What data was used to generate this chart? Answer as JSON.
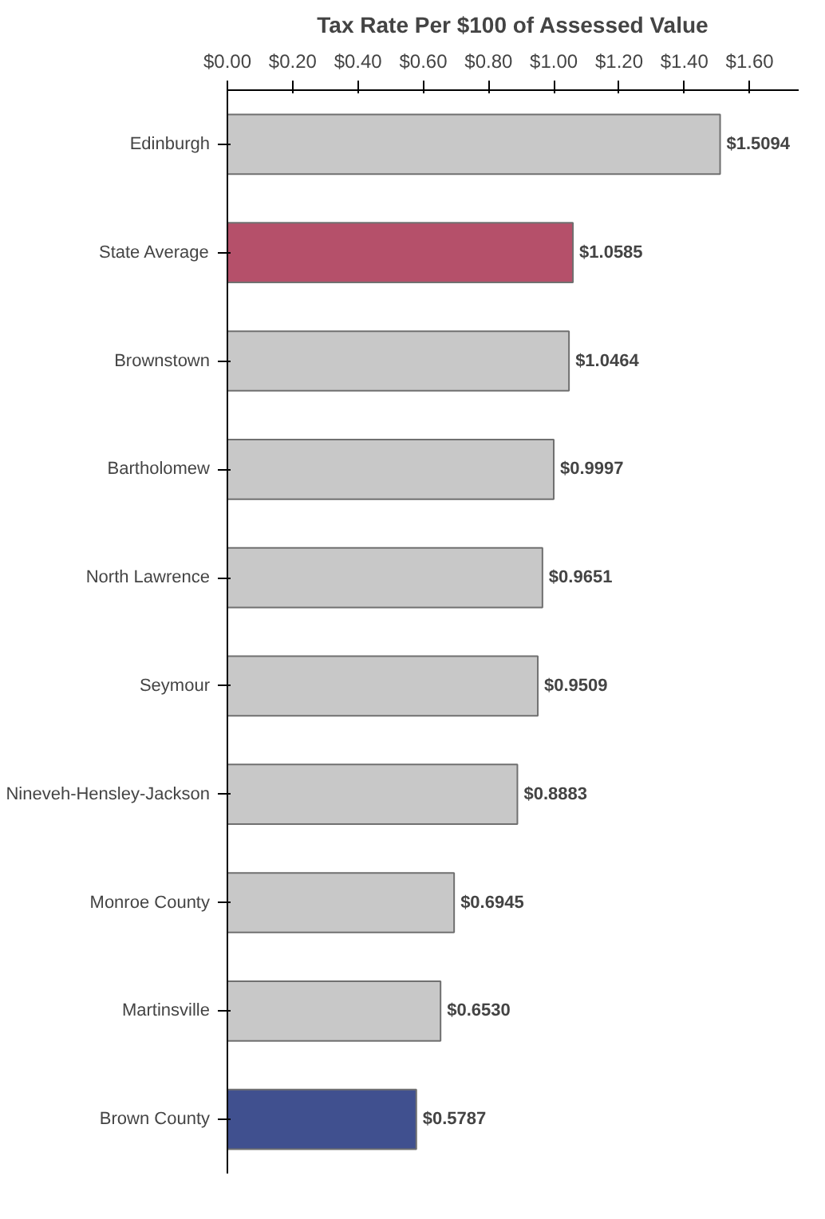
{
  "chart_data": {
    "type": "bar",
    "orientation": "horizontal",
    "title": "Tax Rate Per $100 of Assessed Value",
    "categories": [
      "Edinburgh",
      "State Average",
      "Brownstown",
      "Bartholomew",
      "North Lawrence",
      "Seymour",
      "Nineveh-Hensley-Jackson",
      "Monroe County",
      "Martinsville",
      "Brown County"
    ],
    "values": [
      1.5094,
      1.0585,
      1.0464,
      0.9997,
      0.9651,
      0.9509,
      0.8883,
      0.6945,
      0.653,
      0.5787
    ],
    "value_labels": [
      "$1.5094",
      "$1.0585",
      "$1.0464",
      "$0.9997",
      "$0.9651",
      "$0.9509",
      "$0.8883",
      "$0.6945",
      "$0.6530",
      "$0.5787"
    ],
    "colors": [
      "#c8c8c8",
      "#b5506a",
      "#c8c8c8",
      "#c8c8c8",
      "#c8c8c8",
      "#c8c8c8",
      "#c8c8c8",
      "#c8c8c8",
      "#c8c8c8",
      "#40508f"
    ],
    "xlim": [
      0,
      1.75
    ],
    "xticks": [
      {
        "value": 0,
        "label": "$0.00"
      },
      {
        "value": 0.2,
        "label": "$0.20"
      },
      {
        "value": 0.4,
        "label": "$0.40"
      },
      {
        "value": 0.6,
        "label": "$0.60"
      },
      {
        "value": 0.8,
        "label": "$0.80"
      },
      {
        "value": 1.0,
        "label": "$1.00"
      },
      {
        "value": 1.2,
        "label": "$1.20"
      },
      {
        "value": 1.4,
        "label": "$1.40"
      },
      {
        "value": 1.6,
        "label": "$1.60"
      }
    ],
    "grid": false
  }
}
